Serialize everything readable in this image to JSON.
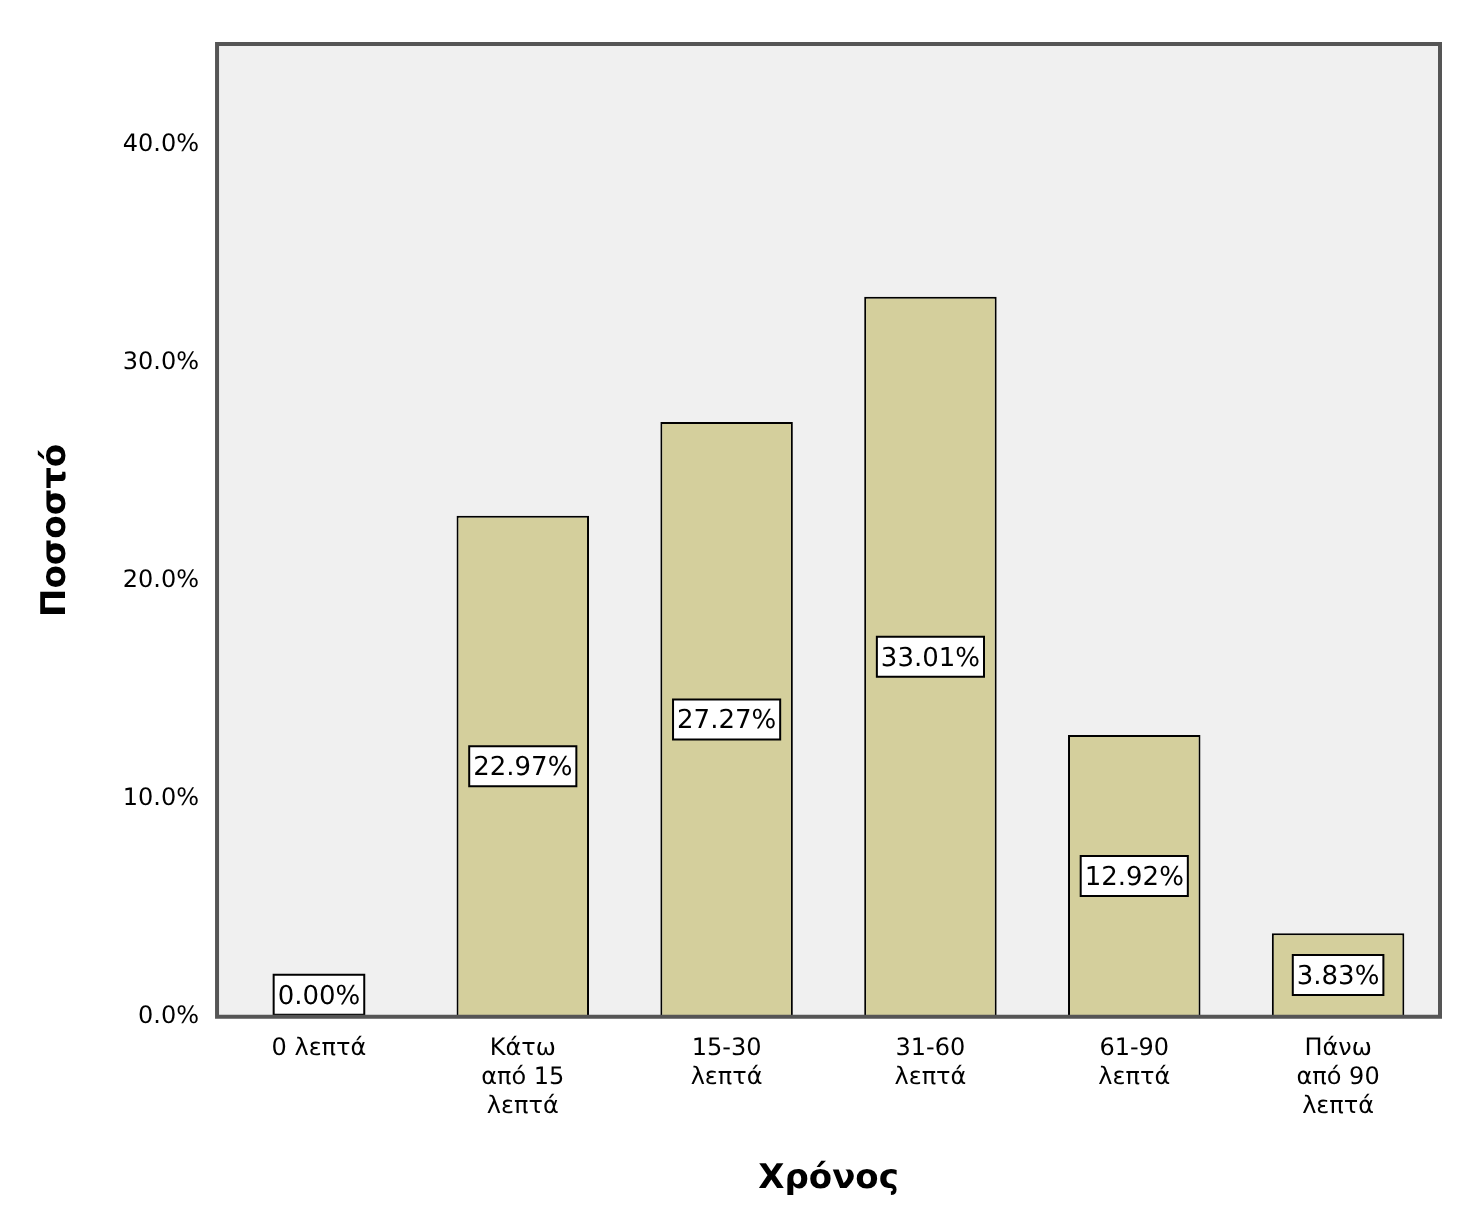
{
  "chart_data": {
    "type": "bar",
    "xlabel": "Χρόνος",
    "ylabel": "Ποσοστό",
    "categories": [
      "0 λεπτά",
      "Κάτω\nαπό 15\nλεπτά",
      "15-30\nλεπτά",
      "31-60\nλεπτά",
      "61-90\nλεπτά",
      "Πάνω\nαπό 90\nλεπτά"
    ],
    "values": [
      0,
      22.97,
      27.27,
      33.01,
      12.92,
      3.83
    ],
    "value_labels": [
      "0.00%",
      "22.97%",
      "27.27%",
      "33.01%",
      "12.92%",
      "3.83%"
    ],
    "color": "#d4cf9c",
    "ylim": [
      0,
      44.6
    ],
    "yticks": [
      {
        "value": 0,
        "label": "0.0%"
      },
      {
        "value": 10,
        "label": "10.0%"
      },
      {
        "value": 20,
        "label": "20.0%"
      },
      {
        "value": 30,
        "label": "30.0%"
      },
      {
        "value": 40,
        "label": "40.0%"
      }
    ],
    "grid": false,
    "legend": false
  }
}
